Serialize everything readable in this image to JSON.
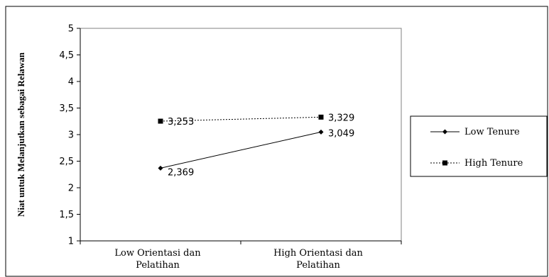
{
  "chart_data": {
    "type": "line",
    "ylabel": "Niat untuk Melanjutkan sebagai Relawan",
    "categories": [
      "Low Orientasi dan Pelatihan",
      "High Orientasi dan Pelatihan"
    ],
    "category_lines": [
      [
        "Low Orientasi dan",
        "Pelatihan"
      ],
      [
        "High Orientasi dan",
        "Pelatihan"
      ]
    ],
    "ylim": [
      1,
      5
    ],
    "yticks": [
      1,
      1.5,
      2,
      2.5,
      3,
      3.5,
      4,
      4.5,
      5
    ],
    "ytick_labels": [
      "1",
      "1,5",
      "2",
      "2,5",
      "3",
      "3,5",
      "4",
      "4,5",
      "5"
    ],
    "grid": false,
    "legend_position": "right",
    "series": [
      {
        "name": "Low Tenure",
        "values": [
          2.369,
          3.049
        ],
        "labels": [
          "2,369",
          "3,049"
        ],
        "marker": "diamond",
        "dash": "solid",
        "color": "#000000"
      },
      {
        "name": "High Tenure",
        "values": [
          3.253,
          3.329
        ],
        "labels": [
          "3,253",
          "3,329"
        ],
        "marker": "square",
        "dash": "dotted",
        "color": "#000000"
      }
    ]
  }
}
